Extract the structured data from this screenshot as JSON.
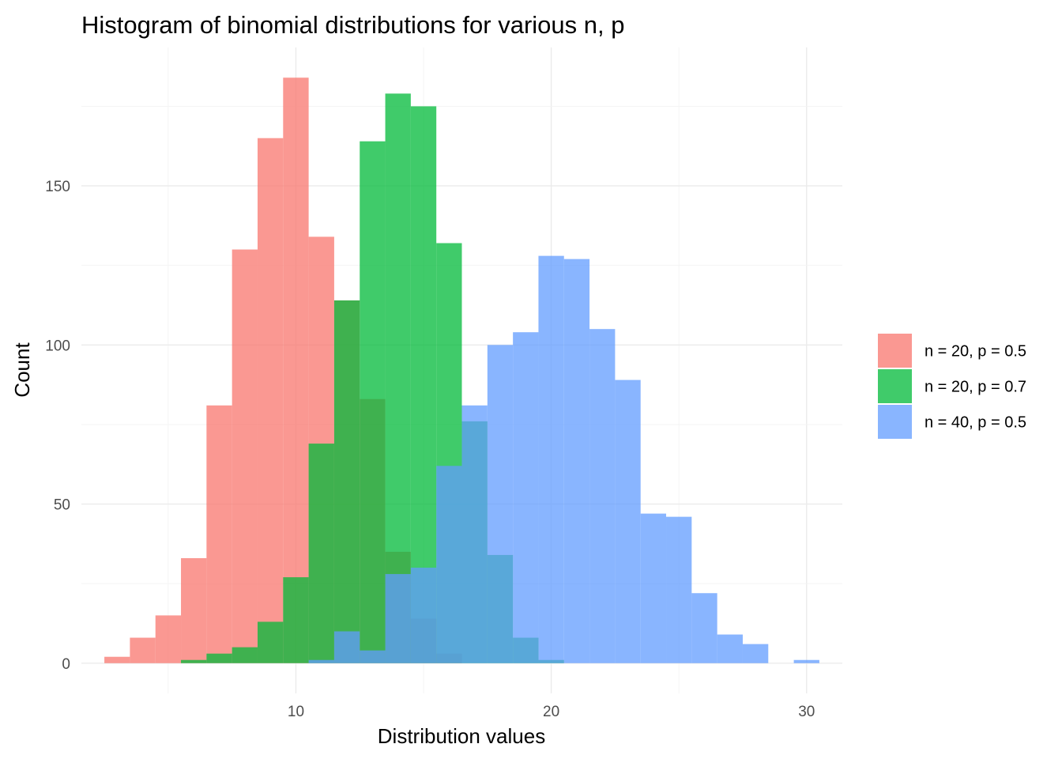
{
  "chart_data": {
    "type": "bar",
    "title": "Histogram of binomial distributions for various n, p",
    "xlabel": "Distribution values",
    "ylabel": "Count",
    "xlim": [
      1.6,
      31.4
    ],
    "ylim": [
      -9.5,
      193.5
    ],
    "x_ticks": [
      10,
      20,
      30
    ],
    "y_ticks": [
      0,
      50,
      100,
      150
    ],
    "bin_width": 1,
    "grid": true,
    "legend_position": "right",
    "series": [
      {
        "name": "n = 20, p = 0.5",
        "color": "#F8766D",
        "bins": [
          {
            "x": 3,
            "count": 2
          },
          {
            "x": 4,
            "count": 8
          },
          {
            "x": 5,
            "count": 15
          },
          {
            "x": 6,
            "count": 33
          },
          {
            "x": 7,
            "count": 81
          },
          {
            "x": 8,
            "count": 130
          },
          {
            "x": 9,
            "count": 165
          },
          {
            "x": 10,
            "count": 184
          },
          {
            "x": 11,
            "count": 134
          },
          {
            "x": 12,
            "count": 114
          },
          {
            "x": 13,
            "count": 83
          },
          {
            "x": 14,
            "count": 35
          },
          {
            "x": 15,
            "count": 14
          },
          {
            "x": 16,
            "count": 3
          }
        ]
      },
      {
        "name": "n = 20, p = 0.7",
        "color": "#00BA38",
        "bins": [
          {
            "x": 6,
            "count": 1
          },
          {
            "x": 7,
            "count": 3
          },
          {
            "x": 8,
            "count": 5
          },
          {
            "x": 9,
            "count": 13
          },
          {
            "x": 10,
            "count": 27
          },
          {
            "x": 11,
            "count": 69
          },
          {
            "x": 12,
            "count": 114
          },
          {
            "x": 13,
            "count": 164
          },
          {
            "x": 14,
            "count": 179
          },
          {
            "x": 15,
            "count": 175
          },
          {
            "x": 16,
            "count": 132
          },
          {
            "x": 17,
            "count": 76
          },
          {
            "x": 18,
            "count": 34
          },
          {
            "x": 19,
            "count": 8
          },
          {
            "x": 20,
            "count": 1
          }
        ]
      },
      {
        "name": "n = 40, p = 0.5",
        "color": "#619CFF",
        "bins": [
          {
            "x": 11,
            "count": 1
          },
          {
            "x": 12,
            "count": 10
          },
          {
            "x": 13,
            "count": 4
          },
          {
            "x": 14,
            "count": 28
          },
          {
            "x": 15,
            "count": 30
          },
          {
            "x": 16,
            "count": 62
          },
          {
            "x": 17,
            "count": 81
          },
          {
            "x": 18,
            "count": 100
          },
          {
            "x": 19,
            "count": 104
          },
          {
            "x": 20,
            "count": 128
          },
          {
            "x": 21,
            "count": 127
          },
          {
            "x": 22,
            "count": 105
          },
          {
            "x": 23,
            "count": 89
          },
          {
            "x": 24,
            "count": 47
          },
          {
            "x": 25,
            "count": 46
          },
          {
            "x": 26,
            "count": 22
          },
          {
            "x": 27,
            "count": 9
          },
          {
            "x": 28,
            "count": 6
          },
          {
            "x": 30,
            "count": 1
          }
        ]
      }
    ]
  }
}
